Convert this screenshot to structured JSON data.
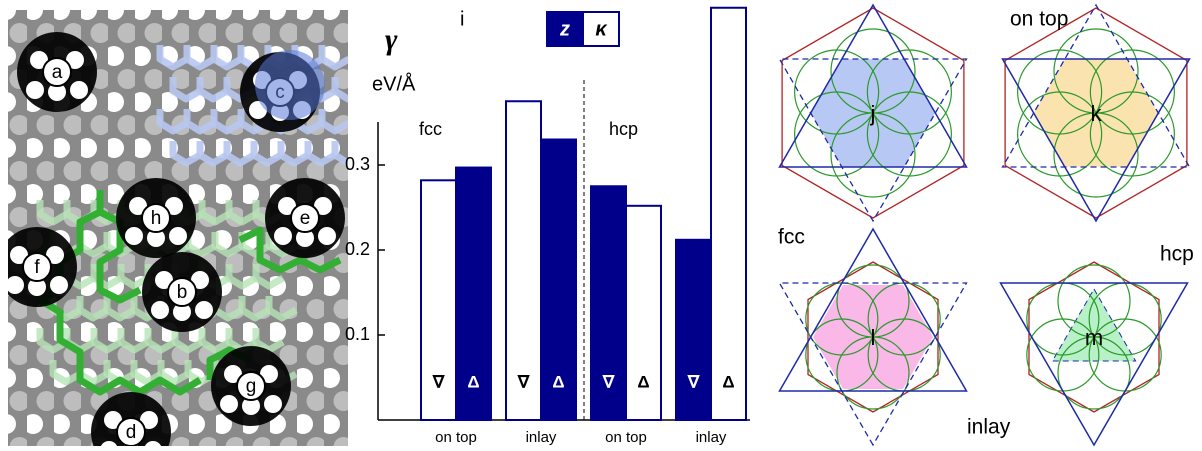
{
  "panels": {
    "left": {
      "labels": [
        "a",
        "b",
        "c",
        "d",
        "e",
        "f",
        "g",
        "h"
      ]
    },
    "right": {
      "labels": [
        "j",
        "k",
        "l",
        "m"
      ],
      "annotations": [
        "on top",
        "fcc",
        "hcp",
        "inlay"
      ]
    }
  },
  "chart_data": {
    "type": "bar",
    "title": "i",
    "ylabel_symbol": "γ",
    "ylabel_unit": "eV/Å",
    "groups": [
      "fcc",
      "hcp"
    ],
    "categories": [
      "on top",
      "inlay",
      "on top",
      "inlay"
    ],
    "series": [
      {
        "name": "z",
        "color": "#00008b",
        "values": [
          0.297,
          0.33,
          0.275,
          0.212
        ],
        "markers": [
          "Δ",
          "Δ",
          "∇",
          "∇"
        ]
      },
      {
        "name": "κ",
        "color": "#ffffff",
        "values": [
          0.282,
          0.375,
          0.252,
          0.485
        ],
        "markers": [
          "∇",
          "∇",
          "Δ",
          "Δ"
        ]
      }
    ],
    "ylim": [
      0,
      0.49
    ],
    "yticks": [
      0.1,
      0.2,
      0.3
    ]
  }
}
